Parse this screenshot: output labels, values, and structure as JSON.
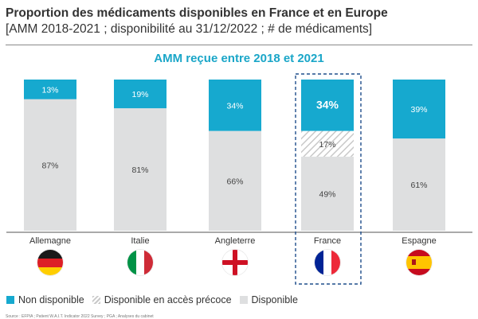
{
  "title": "Proportion des médicaments disponibles en France et en Europe",
  "subtitle": "[AMM 2018-2021 ; disponibilité au 31/12/2022 ; # de médicaments]",
  "source": "Source : EFPIA ; Patient W.A.I.T. Indicator 2022 Survey ; PGA ; Analyses du cabinet",
  "colors": {
    "non_disponible": "#16a9cf",
    "acces_precoce_stripe": "#c8c8c8",
    "disponible": "#dedfe0",
    "heading": "#1aa6c8",
    "highlight_border": "#1f4e8c"
  },
  "chart_data": {
    "type": "bar",
    "stacked": true,
    "unit": "%",
    "title": "AMM reçue entre 2018 et 2021",
    "categories": [
      "Allemagne",
      "Italie",
      "Angleterre",
      "France",
      "Espagne"
    ],
    "flags": [
      "flag-germany",
      "flag-italy",
      "flag-england",
      "flag-france",
      "flag-spain"
    ],
    "highlighted": "France",
    "ylim": [
      0,
      100
    ],
    "series": [
      {
        "name": "Disponible",
        "key": "disponible",
        "values": [
          87,
          81,
          66,
          49,
          61
        ],
        "labels": [
          "87%",
          "81%",
          "66%",
          "49%",
          "61%"
        ]
      },
      {
        "name": "Disponible en accès précoce",
        "key": "acces_precoce",
        "values": [
          0,
          0,
          0,
          17,
          0
        ],
        "labels": [
          "",
          "",
          "",
          "17%",
          ""
        ]
      },
      {
        "name": "Non disponible",
        "key": "non_disponible",
        "values": [
          13,
          19,
          34,
          34,
          39
        ],
        "labels": [
          "13%",
          "19%",
          "34%",
          "34%",
          "39%"
        ]
      }
    ],
    "legend": {
      "position": "bottom-left",
      "items": [
        "Non disponible",
        "Disponible en accès précoce",
        "Disponible"
      ]
    }
  }
}
